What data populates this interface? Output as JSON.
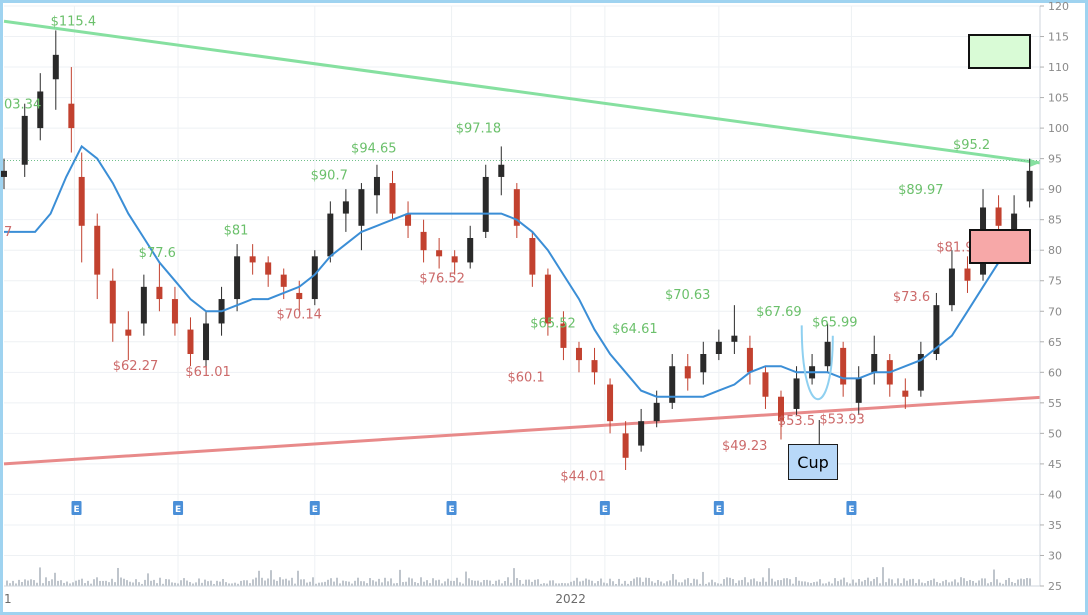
{
  "chart_data": {
    "type": "candlestick",
    "ylim": [
      25,
      120
    ],
    "y_ticks": [
      25,
      30,
      35,
      40,
      45,
      50,
      55,
      60,
      65,
      70,
      75,
      80,
      85,
      90,
      95,
      100,
      105,
      110,
      115,
      120
    ],
    "x_ticks": [
      {
        "label": "1",
        "pos": 0.0
      },
      {
        "label": "2022",
        "pos": 0.547
      }
    ],
    "ohlc": [
      [
        0.0,
        92,
        95,
        90,
        93
      ],
      [
        0.02,
        94,
        104,
        92,
        102
      ],
      [
        0.035,
        100,
        109,
        98,
        106
      ],
      [
        0.05,
        108,
        116,
        103,
        112
      ],
      [
        0.065,
        104,
        110,
        96,
        100
      ],
      [
        0.075,
        92,
        96,
        78,
        84
      ],
      [
        0.09,
        84,
        86,
        72,
        76
      ],
      [
        0.105,
        75,
        77,
        65,
        68
      ],
      [
        0.12,
        67,
        70,
        62,
        66
      ],
      [
        0.135,
        68,
        76,
        66,
        74
      ],
      [
        0.15,
        74,
        78,
        70,
        72
      ],
      [
        0.165,
        72,
        74,
        66,
        68
      ],
      [
        0.18,
        67,
        69,
        61,
        63
      ],
      [
        0.195,
        62,
        70,
        61,
        68
      ],
      [
        0.21,
        68,
        74,
        66,
        72
      ],
      [
        0.225,
        72,
        81,
        70,
        79
      ],
      [
        0.24,
        79,
        81,
        76,
        78
      ],
      [
        0.255,
        78,
        79,
        74,
        76
      ],
      [
        0.27,
        76,
        77,
        72,
        74
      ],
      [
        0.285,
        73,
        75,
        70,
        72
      ],
      [
        0.3,
        72,
        80,
        71,
        79
      ],
      [
        0.315,
        79,
        88,
        78,
        86
      ],
      [
        0.33,
        86,
        90,
        83,
        88
      ],
      [
        0.345,
        84,
        91,
        80,
        90
      ],
      [
        0.36,
        89,
        94,
        86,
        92
      ],
      [
        0.375,
        91,
        93,
        85,
        86
      ],
      [
        0.39,
        86,
        88,
        82,
        84
      ],
      [
        0.405,
        83,
        85,
        78,
        80
      ],
      [
        0.42,
        80,
        82,
        77,
        79
      ],
      [
        0.435,
        79,
        80,
        76,
        78
      ],
      [
        0.45,
        78,
        84,
        77,
        82
      ],
      [
        0.465,
        83,
        94,
        82,
        92
      ],
      [
        0.48,
        92,
        97,
        89,
        94
      ],
      [
        0.495,
        90,
        91,
        82,
        84
      ],
      [
        0.51,
        82,
        83,
        74,
        76
      ],
      [
        0.525,
        76,
        77,
        66,
        68
      ],
      [
        0.54,
        68,
        70,
        62,
        64
      ],
      [
        0.555,
        64,
        65,
        60,
        62
      ],
      [
        0.57,
        62,
        64,
        58,
        60
      ],
      [
        0.585,
        58,
        59,
        50,
        52
      ],
      [
        0.6,
        50,
        52,
        44,
        46
      ],
      [
        0.615,
        48,
        54,
        47,
        52
      ],
      [
        0.63,
        52,
        57,
        51,
        55
      ],
      [
        0.645,
        55,
        63,
        54,
        61
      ],
      [
        0.66,
        61,
        63,
        57,
        59
      ],
      [
        0.675,
        60,
        65,
        58,
        63
      ],
      [
        0.69,
        63,
        67,
        62,
        65
      ],
      [
        0.705,
        65,
        71,
        63,
        66
      ],
      [
        0.72,
        64,
        66,
        58,
        60
      ],
      [
        0.735,
        60,
        61,
        54,
        56
      ],
      [
        0.75,
        56,
        57,
        49,
        52
      ],
      [
        0.765,
        54,
        61,
        53,
        59
      ],
      [
        0.78,
        59,
        63,
        58,
        61
      ],
      [
        0.795,
        61,
        68,
        60,
        65
      ],
      [
        0.81,
        64,
        65,
        56,
        58
      ],
      [
        0.825,
        55,
        61,
        53,
        59
      ],
      [
        0.84,
        60,
        66,
        58,
        63
      ],
      [
        0.855,
        62,
        63,
        56,
        58
      ],
      [
        0.87,
        57,
        59,
        54,
        56
      ],
      [
        0.885,
        57,
        65,
        56,
        63
      ],
      [
        0.9,
        63,
        73,
        62,
        71
      ],
      [
        0.915,
        71,
        80,
        70,
        77
      ],
      [
        0.93,
        77,
        79,
        73,
        75
      ],
      [
        0.945,
        76,
        90,
        75,
        87
      ],
      [
        0.96,
        87,
        89,
        82,
        84
      ],
      [
        0.975,
        83,
        89,
        80,
        86
      ],
      [
        0.99,
        88,
        95,
        87,
        93
      ]
    ],
    "moving_average": [
      [
        0.0,
        83
      ],
      [
        0.03,
        83
      ],
      [
        0.045,
        86
      ],
      [
        0.06,
        92
      ],
      [
        0.075,
        97
      ],
      [
        0.09,
        95
      ],
      [
        0.105,
        91
      ],
      [
        0.12,
        86
      ],
      [
        0.135,
        82
      ],
      [
        0.15,
        78
      ],
      [
        0.165,
        75
      ],
      [
        0.18,
        72
      ],
      [
        0.195,
        70
      ],
      [
        0.21,
        70
      ],
      [
        0.225,
        71
      ],
      [
        0.24,
        72
      ],
      [
        0.255,
        72
      ],
      [
        0.27,
        73
      ],
      [
        0.285,
        74
      ],
      [
        0.3,
        76
      ],
      [
        0.315,
        79
      ],
      [
        0.33,
        81
      ],
      [
        0.345,
        83
      ],
      [
        0.36,
        84
      ],
      [
        0.375,
        85
      ],
      [
        0.39,
        86
      ],
      [
        0.405,
        86
      ],
      [
        0.42,
        86
      ],
      [
        0.435,
        86
      ],
      [
        0.45,
        86
      ],
      [
        0.465,
        86
      ],
      [
        0.48,
        86
      ],
      [
        0.495,
        85
      ],
      [
        0.51,
        83
      ],
      [
        0.525,
        80
      ],
      [
        0.54,
        76
      ],
      [
        0.555,
        72
      ],
      [
        0.57,
        67
      ],
      [
        0.585,
        63
      ],
      [
        0.6,
        60
      ],
      [
        0.615,
        57
      ],
      [
        0.63,
        56
      ],
      [
        0.645,
        56
      ],
      [
        0.66,
        56
      ],
      [
        0.675,
        56
      ],
      [
        0.69,
        57
      ],
      [
        0.705,
        58
      ],
      [
        0.72,
        60
      ],
      [
        0.735,
        61
      ],
      [
        0.75,
        61
      ],
      [
        0.765,
        60
      ],
      [
        0.78,
        60
      ],
      [
        0.795,
        60
      ],
      [
        0.81,
        59
      ],
      [
        0.825,
        59
      ],
      [
        0.84,
        60
      ],
      [
        0.855,
        60
      ],
      [
        0.87,
        61
      ],
      [
        0.885,
        62
      ],
      [
        0.9,
        64
      ],
      [
        0.915,
        66
      ],
      [
        0.93,
        70
      ],
      [
        0.945,
        74
      ],
      [
        0.96,
        78
      ],
      [
        0.975,
        82
      ]
    ],
    "resistance_line": [
      [
        0.0,
        117.5
      ],
      [
        1.0,
        94.3
      ]
    ],
    "support_line": [
      [
        0.0,
        45
      ],
      [
        1.0,
        55.9
      ]
    ],
    "reference_level": 94.7,
    "cup_curve": [
      [
        0.77,
        67.69
      ],
      [
        0.785,
        53.5
      ],
      [
        0.8,
        65.99
      ]
    ],
    "earnings_markers": [
      0.07,
      0.168,
      0.3,
      0.432,
      0.58,
      0.69,
      0.818
    ],
    "annotations": {
      "green": [
        {
          "text": "$115.4",
          "x": 0.045,
          "y": 116.8
        },
        {
          "text": "03.34",
          "x": 0.0,
          "y": 103.2
        },
        {
          "text": "$94.65",
          "x": 0.335,
          "y": 96.0
        },
        {
          "text": "$97.18",
          "x": 0.436,
          "y": 99.3
        },
        {
          "text": "$90.7",
          "x": 0.296,
          "y": 91.6
        },
        {
          "text": "$81",
          "x": 0.212,
          "y": 82.6
        },
        {
          "text": "$77.6",
          "x": 0.13,
          "y": 78.9
        },
        {
          "text": "$65.52",
          "x": 0.508,
          "y": 67.3
        },
        {
          "text": "$64.61",
          "x": 0.587,
          "y": 66.4
        },
        {
          "text": "$70.63",
          "x": 0.638,
          "y": 72.0
        },
        {
          "text": "$67.69",
          "x": 0.726,
          "y": 69.2
        },
        {
          "text": "$65.99",
          "x": 0.78,
          "y": 67.5
        },
        {
          "text": "$89.97",
          "x": 0.863,
          "y": 89.2
        },
        {
          "text": "$95.2",
          "x": 0.916,
          "y": 96.6
        }
      ],
      "red": [
        {
          "text": "7",
          "x": 0.0,
          "y": 82.3
        },
        {
          "text": "$62.27",
          "x": 0.105,
          "y": 60.4
        },
        {
          "text": "$61.01",
          "x": 0.175,
          "y": 59.4
        },
        {
          "text": "$70.14",
          "x": 0.263,
          "y": 68.8
        },
        {
          "text": "$76.52",
          "x": 0.401,
          "y": 74.7
        },
        {
          "text": "$60.1",
          "x": 0.486,
          "y": 58.5
        },
        {
          "text": "$44.01",
          "x": 0.537,
          "y": 42.3
        },
        {
          "text": "$49.23",
          "x": 0.693,
          "y": 47.3
        },
        {
          "text": "$53.5",
          "x": 0.747,
          "y": 51.4
        },
        {
          "text": "$53.93",
          "x": 0.787,
          "y": 51.6
        },
        {
          "text": "$73.6",
          "x": 0.858,
          "y": 71.7
        },
        {
          "text": "$81.97",
          "x": 0.9,
          "y": 79.8
        }
      ]
    },
    "cup_label": "Cup",
    "earnings_label": "E",
    "volume_present": true
  },
  "colors": {
    "up_candle": "#2a2a2a",
    "down_candle": "#c2412f",
    "moving_average": "#3b8ed6",
    "resistance": "#86e0a0",
    "support": "#e88a8a",
    "label_green": "#6bc06b",
    "label_red": "#cc6a6a",
    "axis_text": "#8a8a8a",
    "grid": "#eef1f4",
    "earnings_marker": "#4a8fd8",
    "volume": "#bfc5cc",
    "cup_curve": "#8fd0f0"
  }
}
